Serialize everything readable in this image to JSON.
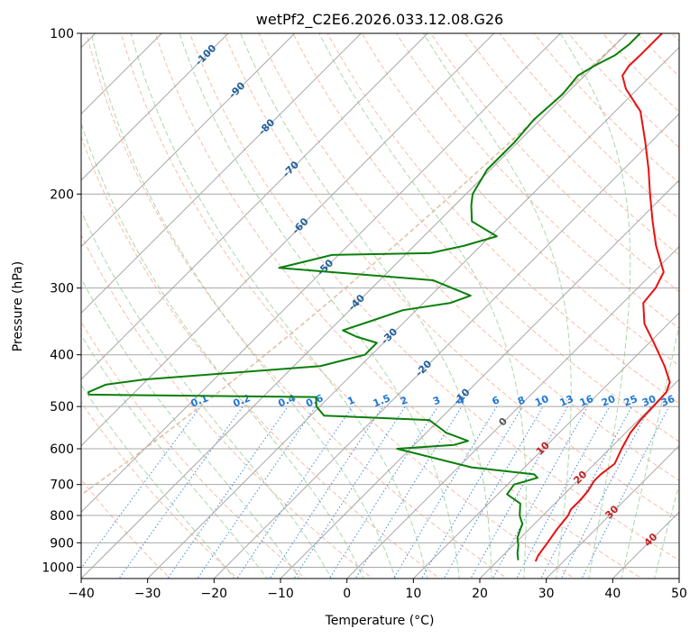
{
  "chart_data": {
    "type": "line",
    "title": "wetPf2_C2E6.2026.033.12.08.G26",
    "xlabel": "Temperature (°C)",
    "ylabel": "Pressure (hPa)",
    "xlim": [
      -40,
      50
    ],
    "ylim": [
      1050,
      100
    ],
    "x_ticks": [
      -40,
      -30,
      -20,
      -10,
      0,
      10,
      20,
      30,
      40,
      50
    ],
    "x_tick_labels": [
      "−40",
      "−30",
      "−20",
      "−10",
      "0",
      "10",
      "20",
      "30",
      "40",
      "50"
    ],
    "y_ticks": [
      100,
      200,
      300,
      400,
      500,
      600,
      700,
      800,
      900,
      1000
    ],
    "y_tick_labels": [
      "100",
      "200",
      "300",
      "400",
      "500",
      "600",
      "700",
      "800",
      "900",
      "1000"
    ],
    "skew_degrees": 45,
    "colors": {
      "temperature": "#e8110f",
      "dewpoint": "#0a7f0a",
      "isotherm": "#a8a8a8",
      "dry_adiabat": "#f7a58b",
      "moist_adiabat": "#9ed09e",
      "mixing_ratio": "#1f77d4",
      "zero_isotherm_label": "#555555",
      "neg_isotherm_label": "#1f5f9a",
      "pos_isotherm_label": "#c02020",
      "dgz_curve": "#d9b48f"
    },
    "series": [
      {
        "name": "Temperature",
        "color": "#e8110f",
        "points": [
          [
            975,
            25.8
          ],
          [
            950,
            25.3
          ],
          [
            900,
            24.8
          ],
          [
            850,
            24.2
          ],
          [
            800,
            23.8
          ],
          [
            780,
            23.3
          ],
          [
            750,
            23.3
          ],
          [
            720,
            23.1
          ],
          [
            690,
            22.5
          ],
          [
            670,
            22.5
          ],
          [
            640,
            23.0
          ],
          [
            600,
            21.8
          ],
          [
            560,
            20.7
          ],
          [
            530,
            20.3
          ],
          [
            500,
            20.2
          ],
          [
            470,
            20.0
          ],
          [
            450,
            19.0
          ],
          [
            420,
            15.8
          ],
          [
            380,
            10.7
          ],
          [
            350,
            6.4
          ],
          [
            320,
            3.1
          ],
          [
            300,
            2.7
          ],
          [
            280,
            1.5
          ],
          [
            250,
            -3.6
          ],
          [
            225,
            -7.8
          ],
          [
            200,
            -12.3
          ],
          [
            180,
            -16.2
          ],
          [
            160,
            -20.8
          ],
          [
            140,
            -26.2
          ],
          [
            127,
            -31.8
          ],
          [
            120,
            -34.3
          ],
          [
            115,
            -34.8
          ],
          [
            110,
            -34.7
          ],
          [
            100,
            -34.7
          ]
        ]
      },
      {
        "name": "Dewpoint",
        "color": "#0a7f0a",
        "points": [
          [
            970,
            23.0
          ],
          [
            940,
            21.8
          ],
          [
            910,
            20.8
          ],
          [
            880,
            19.5
          ],
          [
            850,
            18.7
          ],
          [
            830,
            18.2
          ],
          [
            800,
            16.5
          ],
          [
            760,
            14.8
          ],
          [
            730,
            11.4
          ],
          [
            700,
            11.0
          ],
          [
            680,
            13.5
          ],
          [
            670,
            12.5
          ],
          [
            650,
            2.0
          ],
          [
            600,
            -12.0
          ],
          [
            590,
            -4.0
          ],
          [
            580,
            -2.5
          ],
          [
            560,
            -7.0
          ],
          [
            530,
            -11.5
          ],
          [
            520,
            -28.0
          ],
          [
            500,
            -30.5
          ],
          [
            480,
            -32.0
          ],
          [
            475,
            -66.5
          ],
          [
            470,
            -67.0
          ],
          [
            455,
            -65.5
          ],
          [
            445,
            -60.5
          ],
          [
            420,
            -36.0
          ],
          [
            400,
            -31.0
          ],
          [
            380,
            -31.0
          ],
          [
            370,
            -35.0
          ],
          [
            360,
            -38.0
          ],
          [
            345,
            -35.0
          ],
          [
            330,
            -32.0
          ],
          [
            320,
            -26.0
          ],
          [
            310,
            -24.0
          ],
          [
            290,
            -32.0
          ],
          [
            275,
            -57.0
          ],
          [
            265,
            -53.0
          ],
          [
            260,
            -51.0
          ],
          [
            258,
            -36.5
          ],
          [
            250,
            -32.5
          ],
          [
            240,
            -29.0
          ],
          [
            225,
            -35.0
          ],
          [
            210,
            -37.5
          ],
          [
            200,
            -39.0
          ],
          [
            180,
            -40.5
          ],
          [
            160,
            -40.5
          ],
          [
            145,
            -41.0
          ],
          [
            130,
            -40.5
          ],
          [
            120,
            -41.0
          ],
          [
            115,
            -40.0
          ],
          [
            110,
            -38.5
          ],
          [
            105,
            -38.0
          ],
          [
            100,
            -38.0
          ]
        ]
      }
    ],
    "mixing_ratio_labels": [
      "0.1",
      "0.2",
      "0.4",
      "0.6",
      "1",
      "1.5",
      "2",
      "3",
      "4",
      "6",
      "8",
      "10",
      "13",
      "16",
      "20",
      "25",
      "30",
      "36"
    ],
    "mixing_ratio_values": [
      0.1,
      0.2,
      0.4,
      0.6,
      1,
      1.5,
      2,
      3,
      4,
      6,
      8,
      10,
      13,
      16,
      20,
      25,
      30,
      36
    ],
    "isotherm_labels": [
      {
        "text": "-100",
        "value": -100,
        "color": "#1f5f9a"
      },
      {
        "text": "-90",
        "value": -90,
        "color": "#1f5f9a"
      },
      {
        "text": "-80",
        "value": -80,
        "color": "#1f5f9a"
      },
      {
        "text": "-70",
        "value": -70,
        "color": "#1f5f9a"
      },
      {
        "text": "-60",
        "value": -60,
        "color": "#1f5f9a"
      },
      {
        "text": "-50",
        "value": -50,
        "color": "#1f5f9a"
      },
      {
        "text": "-40",
        "value": -40,
        "color": "#1f5f9a"
      },
      {
        "text": "-30",
        "value": -30,
        "color": "#1f5f9a"
      },
      {
        "text": "-20",
        "value": -20,
        "color": "#1f5f9a"
      },
      {
        "text": "-10",
        "value": -10,
        "color": "#1f5f9a"
      },
      {
        "text": "0",
        "value": 0,
        "color": "#555555"
      },
      {
        "text": "10",
        "value": 10,
        "color": "#c02020"
      },
      {
        "text": "20",
        "value": 20,
        "color": "#c02020"
      },
      {
        "text": "30",
        "value": 30,
        "color": "#c02020"
      },
      {
        "text": "40",
        "value": 40,
        "color": "#c02020"
      }
    ]
  }
}
